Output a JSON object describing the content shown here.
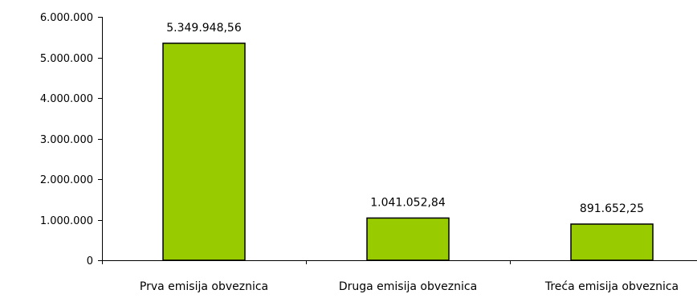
{
  "chart_data": {
    "type": "bar",
    "categories": [
      "Prva emisija obveznica",
      "Druga emisija obveznica",
      "Treća emisija obveznica"
    ],
    "values": [
      5349948.56,
      1041052.84,
      891652.25
    ],
    "data_labels": [
      "5.349.948,56",
      "1.041.052,84",
      "891.652,25"
    ],
    "title": "",
    "xlabel": "",
    "ylabel": "",
    "ylim": [
      0,
      6000000
    ],
    "yticks": [
      0,
      1000000,
      2000000,
      3000000,
      4000000,
      5000000,
      6000000
    ],
    "ytick_labels": [
      "0",
      "1.000.000",
      "2.000.000",
      "3.000.000",
      "4.000.000",
      "5.000.000",
      "6.000.000"
    ],
    "grid": false,
    "legend": "none",
    "bar_color": "#99cc00",
    "bar_border_color": "#000000"
  }
}
